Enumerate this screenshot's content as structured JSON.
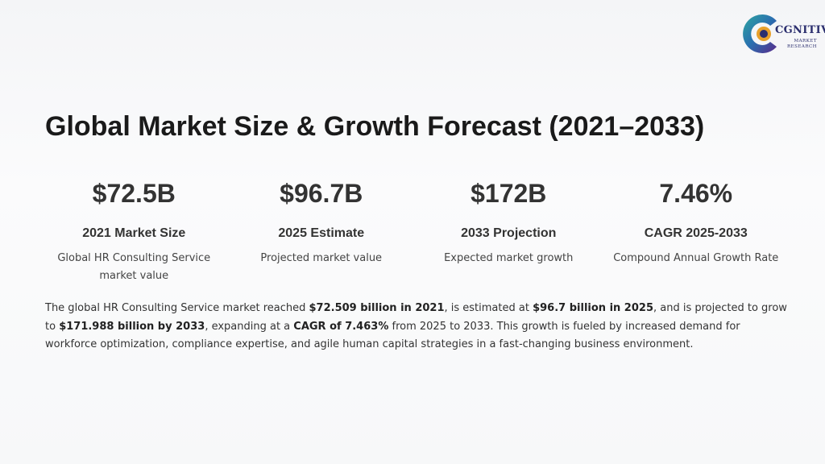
{
  "logo": {
    "name": "CGNITIVE",
    "sub_line1": "MARKET",
    "sub_line2": "RESEARCH"
  },
  "title": "Global Market Size & Growth Forecast (2021–2033)",
  "stats": [
    {
      "value": "$72.5B",
      "label": "2021 Market Size",
      "desc": "Global HR Consulting Service market value"
    },
    {
      "value": "$96.7B",
      "label": "2025 Estimate",
      "desc": "Projected market value"
    },
    {
      "value": "$172B",
      "label": "2033 Projection",
      "desc": "Expected market growth"
    },
    {
      "value": "7.46%",
      "label": "CAGR 2025-2033",
      "desc": "Compound Annual Growth Rate"
    }
  ],
  "summary": {
    "t1": "The global HR Consulting Service market reached ",
    "b1": "$72.509 billion in 2021",
    "t2": ", is estimated at ",
    "b2": "$96.7 billion in 2025",
    "t3": ", and is projected to grow to ",
    "b3": "$171.988 billion by 2033",
    "t4": ", expanding at a ",
    "b4": "CAGR of 7.463%",
    "t5": " from 2025 to 2033. This growth is fueled by increased demand for workforce optimization, compliance expertise, and agile human capital strategies in a fast-changing business environment."
  }
}
